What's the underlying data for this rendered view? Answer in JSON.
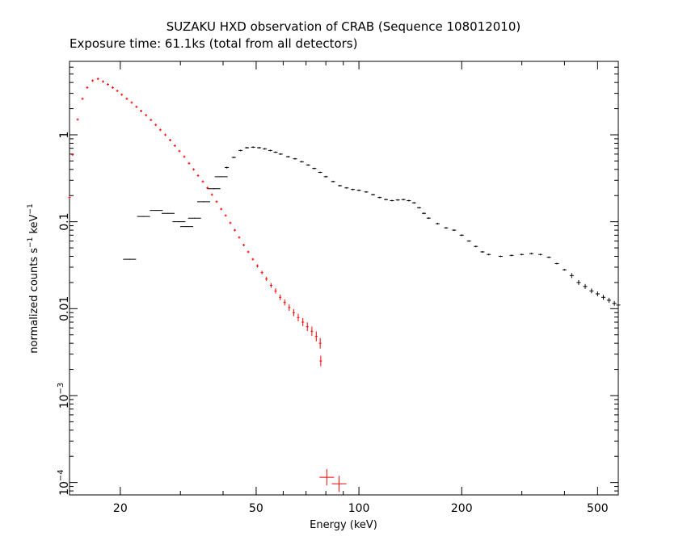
{
  "chart_data": {
    "type": "scatter",
    "title": "SUZAKU HXD observation of CRAB (Sequence 108012010)",
    "subtitle": "Exposure time: 61.1ks (total from all detectors)",
    "xlabel": "Energy (keV)",
    "ylabel_main": "normalized counts s",
    "ylabel_exp1": "−1",
    "ylabel_mid": " keV",
    "ylabel_exp2": "−1",
    "x_scale": "log",
    "y_scale": "log",
    "xlim": [
      14.2,
      575
    ],
    "ylim": [
      7.2e-05,
      7.0
    ],
    "grid": false,
    "legend": "none",
    "x_ticks": [
      {
        "value": 20,
        "label": "20"
      },
      {
        "value": 50,
        "label": "50"
      },
      {
        "value": 100,
        "label": "100"
      },
      {
        "value": 200,
        "label": "200"
      },
      {
        "value": 500,
        "label": "500"
      }
    ],
    "y_ticks": [
      {
        "value": 1,
        "label": "1",
        "exp": ""
      },
      {
        "value": 0.1,
        "label": "0.1",
        "exp": ""
      },
      {
        "value": 0.01,
        "label": "0.01",
        "exp": ""
      },
      {
        "value": 0.001,
        "label": "10",
        "exp": "−3"
      },
      {
        "value": 0.0001,
        "label": "10",
        "exp": "−4"
      }
    ],
    "series": [
      {
        "color": "#ff0000",
        "detector_note": "PIN",
        "points": [
          [
            14.2,
            0.19
          ],
          [
            14.5,
            0.59
          ],
          [
            15.0,
            1.5
          ],
          [
            15.5,
            2.6
          ],
          [
            16.0,
            3.5
          ],
          [
            16.6,
            4.2
          ],
          [
            17.2,
            4.4
          ],
          [
            17.8,
            4.1
          ],
          [
            18.4,
            3.8
          ],
          [
            19.0,
            3.5
          ],
          [
            19.6,
            3.2
          ],
          [
            20.2,
            2.9
          ],
          [
            20.9,
            2.6
          ],
          [
            21.6,
            2.35
          ],
          [
            22.3,
            2.1
          ],
          [
            23.0,
            1.88
          ],
          [
            23.8,
            1.68
          ],
          [
            24.6,
            1.48
          ],
          [
            25.4,
            1.3
          ],
          [
            26.2,
            1.14
          ],
          [
            27.1,
            1.0
          ],
          [
            28.0,
            0.87
          ],
          [
            28.9,
            0.75
          ],
          [
            29.8,
            0.65
          ],
          [
            30.8,
            0.56
          ],
          [
            31.8,
            0.47
          ],
          [
            32.8,
            0.4
          ],
          [
            33.8,
            0.34
          ],
          [
            34.9,
            0.29
          ],
          [
            36.0,
            0.245
          ],
          [
            37.1,
            0.205
          ],
          [
            38.3,
            0.17
          ],
          [
            39.5,
            0.14
          ],
          [
            40.7,
            0.118
          ],
          [
            42.0,
            0.097
          ],
          [
            43.3,
            0.08
          ],
          [
            44.6,
            0.066
          ],
          [
            46.0,
            0.054
          ],
          [
            47.4,
            0.045
          ],
          [
            48.9,
            0.037
          ],
          [
            50.4,
            0.031
          ],
          [
            52.0,
            0.026
          ],
          [
            53.6,
            0.022
          ],
          [
            55.3,
            0.0185
          ],
          [
            57.0,
            0.016
          ],
          [
            58.8,
            0.0135
          ],
          [
            60.6,
            0.0118
          ],
          [
            62.5,
            0.0103
          ],
          [
            64.4,
            0.009
          ],
          [
            66.4,
            0.0079
          ],
          [
            68.5,
            0.007
          ],
          [
            70.6,
            0.0062
          ],
          [
            72.8,
            0.0055
          ],
          [
            75.0,
            0.0048
          ],
          [
            77.0,
            0.004
          ],
          [
            77.3,
            0.0025
          ]
        ],
        "large_points": [
          [
            80.5,
            0.000115
          ],
          [
            87.5,
            9.65e-05
          ]
        ]
      },
      {
        "color": "#000000",
        "detector_note": "GSO",
        "binned": [
          [
            21.3,
            0.037
          ],
          [
            23.4,
            0.115
          ],
          [
            25.5,
            0.135
          ],
          [
            27.6,
            0.125
          ],
          [
            29.7,
            0.1
          ],
          [
            31.3,
            0.088
          ],
          [
            33.0,
            0.11
          ],
          [
            35.1,
            0.17
          ],
          [
            37.6,
            0.24
          ],
          [
            39.5,
            0.33
          ]
        ],
        "points": [
          [
            41,
            0.42
          ],
          [
            43,
            0.55
          ],
          [
            45,
            0.66
          ],
          [
            47,
            0.71
          ],
          [
            49,
            0.72
          ],
          [
            51,
            0.71
          ],
          [
            53,
            0.69
          ],
          [
            55,
            0.66
          ],
          [
            57,
            0.63
          ],
          [
            59,
            0.6
          ],
          [
            62,
            0.56
          ],
          [
            65,
            0.53
          ],
          [
            68,
            0.49
          ],
          [
            71,
            0.45
          ],
          [
            74,
            0.41
          ],
          [
            77,
            0.37
          ],
          [
            80,
            0.33
          ],
          [
            84,
            0.29
          ],
          [
            88,
            0.26
          ],
          [
            92,
            0.245
          ],
          [
            96,
            0.235
          ],
          [
            100,
            0.23
          ],
          [
            105,
            0.22
          ],
          [
            110,
            0.205
          ],
          [
            115,
            0.19
          ],
          [
            120,
            0.18
          ],
          [
            125,
            0.175
          ],
          [
            130,
            0.178
          ],
          [
            135,
            0.18
          ],
          [
            140,
            0.175
          ],
          [
            145,
            0.165
          ],
          [
            150,
            0.145
          ],
          [
            155,
            0.125
          ],
          [
            160,
            0.11
          ],
          [
            170,
            0.095
          ],
          [
            180,
            0.085
          ],
          [
            190,
            0.08
          ],
          [
            200,
            0.07
          ],
          [
            210,
            0.06
          ],
          [
            220,
            0.052
          ],
          [
            230,
            0.045
          ],
          [
            240,
            0.042
          ],
          [
            260,
            0.04
          ],
          [
            280,
            0.041
          ],
          [
            300,
            0.042
          ],
          [
            320,
            0.043
          ],
          [
            340,
            0.042
          ],
          [
            360,
            0.039
          ],
          [
            380,
            0.033
          ],
          [
            400,
            0.028
          ],
          [
            420,
            0.024
          ],
          [
            440,
            0.02
          ],
          [
            460,
            0.018
          ],
          [
            480,
            0.016
          ],
          [
            500,
            0.0148
          ],
          [
            520,
            0.0135
          ],
          [
            540,
            0.0125
          ],
          [
            560,
            0.0115
          ],
          [
            575,
            0.011
          ]
        ]
      }
    ]
  }
}
